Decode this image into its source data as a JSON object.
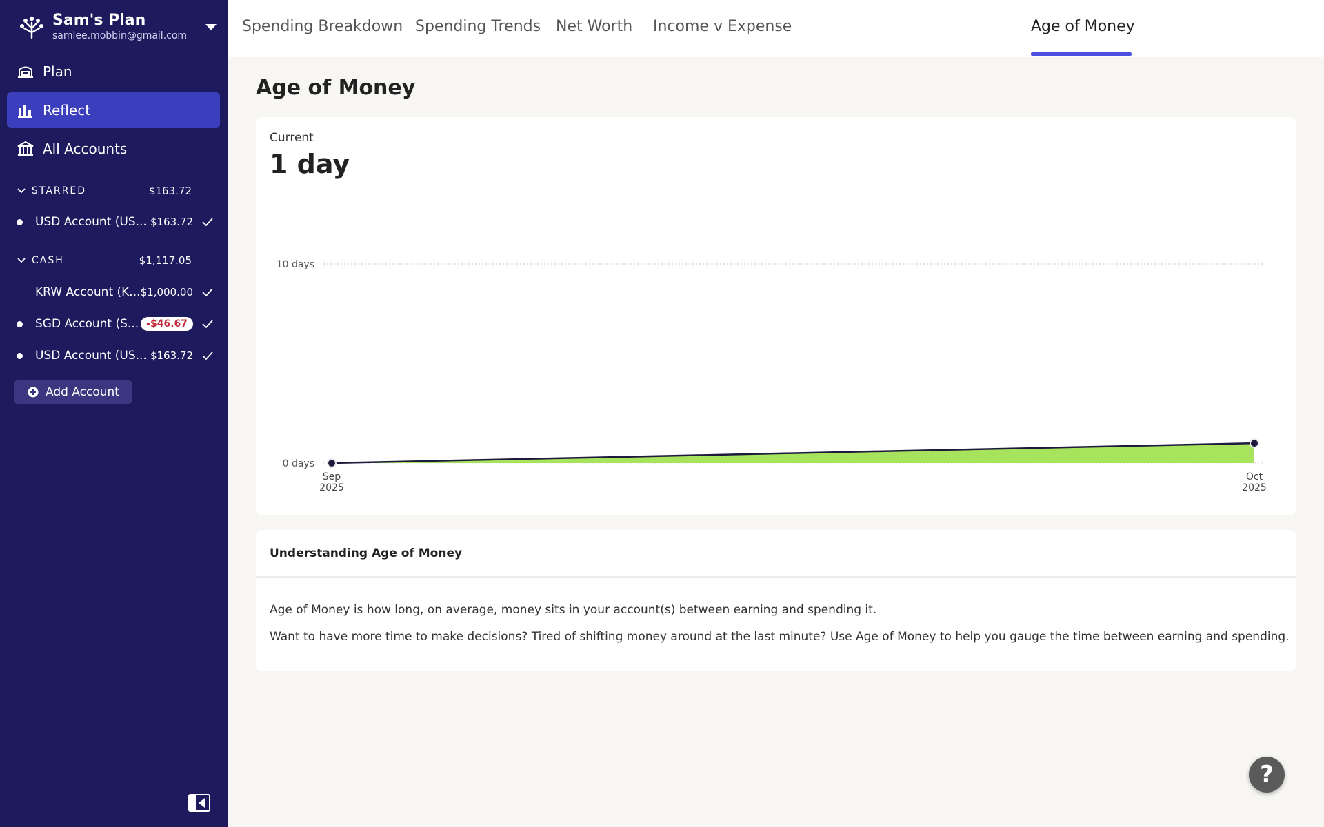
{
  "sidebar": {
    "plan_name": "Sam's Plan",
    "plan_email": "samlee.mobbin@gmail.com",
    "nav": [
      {
        "label": "Plan",
        "icon": "plan-icon"
      },
      {
        "label": "Reflect",
        "icon": "bar-chart-icon"
      },
      {
        "label": "All Accounts",
        "icon": "bank-icon"
      }
    ],
    "groups": [
      {
        "name": "STARRED",
        "total": "$163.72",
        "accounts": [
          {
            "name": "USD Account (US...",
            "balance": "$163.72"
          }
        ]
      },
      {
        "name": "CASH",
        "total": "$1,117.05",
        "accounts": [
          {
            "name": "KRW Account (K...",
            "balance": "$1,000.00"
          },
          {
            "name": "SGD Account (S...",
            "balance": "-$46.67"
          },
          {
            "name": "USD Account (US...",
            "balance": "$163.72"
          }
        ]
      }
    ],
    "add_account_label": "Add Account"
  },
  "tabs": [
    {
      "label": "Spending Breakdown"
    },
    {
      "label": "Spending Trends"
    },
    {
      "label": "Net Worth"
    },
    {
      "label": "Income v Expense"
    },
    {
      "label": "Age of Money"
    }
  ],
  "main": {
    "title": "Age of Money",
    "current_label": "Current",
    "current_value": "1 day",
    "info_title": "Understanding Age of Money",
    "info_p1": "Age of Money is how long, on average, money sits in your account(s) between earning and spending it.",
    "info_p2": "Want to have more time to make decisions? Tired of shifting money around at the last minute? Use Age of Money to help you gauge the time between earning and spending."
  },
  "help_label": "?",
  "colors": {
    "sidebar_bg": "#1e1a5e",
    "active_nav": "#3c3fbd",
    "accent": "#4b50e0",
    "area_fill": "#a8e35e",
    "line": "#1e1a3e"
  },
  "chart_data": {
    "type": "area",
    "categories": [
      "Sep 2025",
      "Oct 2025"
    ],
    "x_labels": [
      [
        "Sep",
        "2025"
      ],
      [
        "Oct",
        "2025"
      ]
    ],
    "values": [
      0,
      1
    ],
    "y_ticks": [
      "0 days",
      "10 days"
    ],
    "ylim": [
      0,
      10
    ],
    "grid": true
  }
}
